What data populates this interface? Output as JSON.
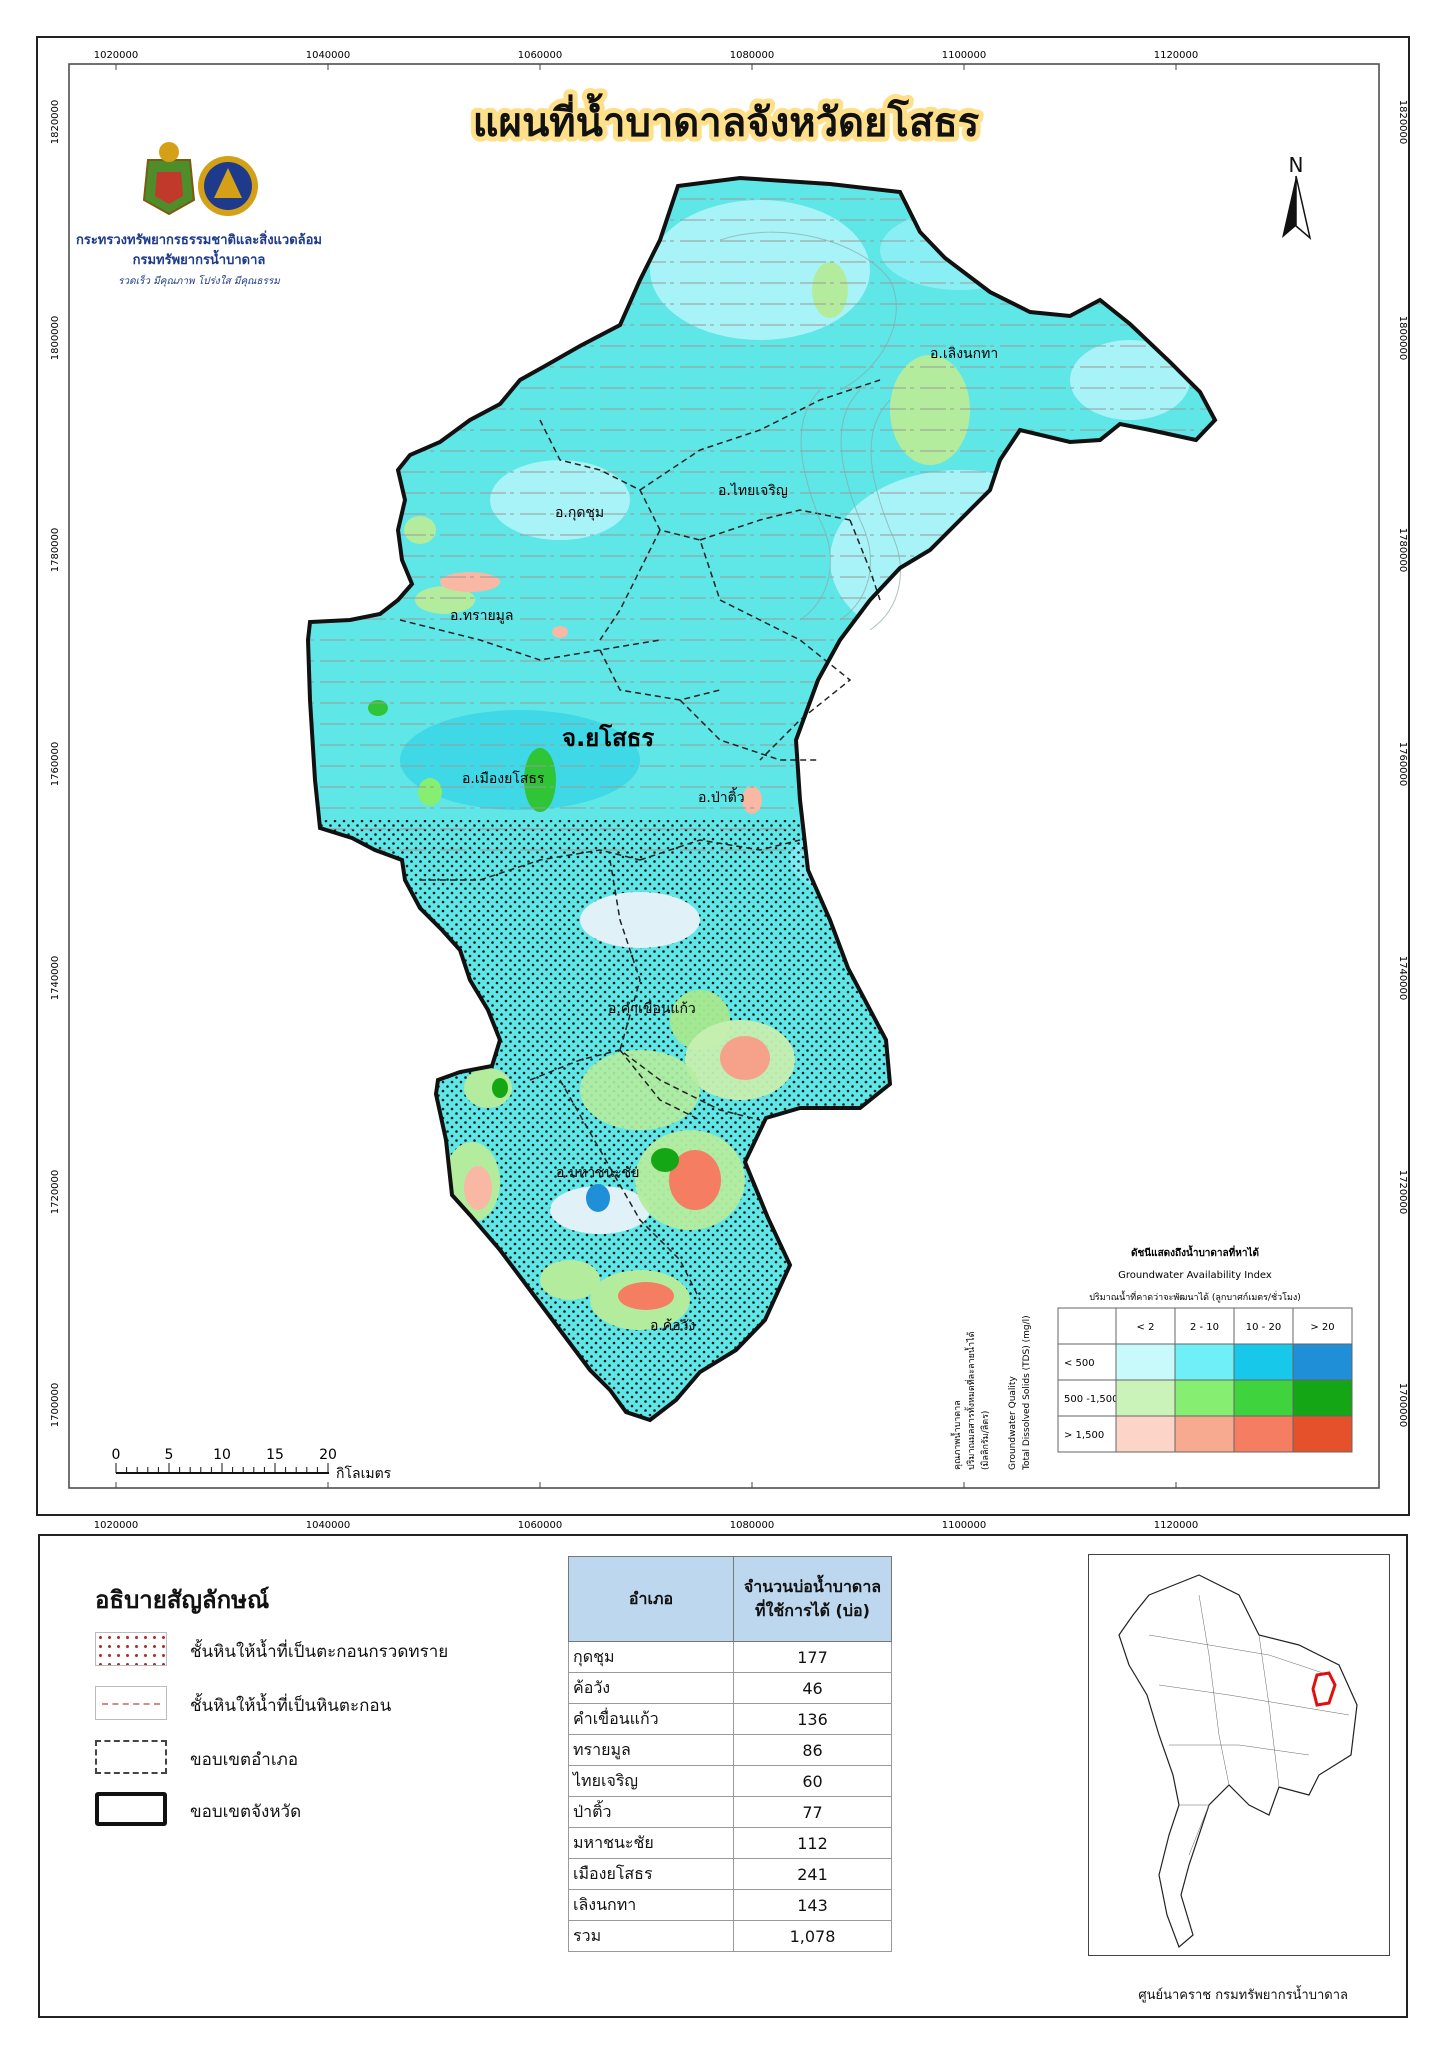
{
  "map": {
    "title": "แผนที่น้ำบาดาลจังหวัดยโสธร",
    "north_label": "N",
    "colors": {
      "title_glow": "#ffe08a",
      "aquifer_base": "#5fe6e6",
      "boundary": "#111111"
    },
    "ministry": "กระทรวงทรัพยากรธรรมชาติและสิ่งแวดล้อม",
    "department": "กรมทรัพยากรน้ำบาดาล",
    "motto": "รวดเร็ว มีคุณภาพ โปร่งใส มีคุณธรรม",
    "province_label": "จ.ยโสธร",
    "district_labels": [
      "อ.เลิงนกทา",
      "อ.ไทยเจริญ",
      "อ.กุดชุม",
      "อ.ทรายมูล",
      "อ.เมืองยโสธร",
      "อ.ป่าติ้ว",
      "อ.คำเขื่อนแก้ว",
      "อ.มหาชนะชัย",
      "อ.ค้อวัง"
    ],
    "x_ticks": [
      "1020000",
      "1040000",
      "1060000",
      "1080000",
      "1100000",
      "1120000"
    ],
    "y_ticks": [
      "1820000",
      "1800000",
      "1780000",
      "1760000",
      "1740000",
      "1720000",
      "1700000"
    ],
    "scale": {
      "ticks": [
        "0",
        "5",
        "10",
        "15",
        "20"
      ],
      "unit": "กิโลเมตร"
    }
  },
  "matrix": {
    "title_th": "ดัชนีแสดงถึงน้ำบาดาลที่หาได้",
    "title_en": "Groundwater Availability Index",
    "x_title": "ปริมาณน้ำที่คาดว่าจะพัฒนาได้ (ลูกบาศก์เมตร/ชั่วโมง)",
    "y_title_1": "คุณภาพน้ำบาดาล",
    "y_title_2": "ปริมาณมลสารทั้งหมดที่ละลายน้ำได้",
    "y_title_3": "(มิลลิกรัม/ลิตร)",
    "y_title_en1": "Groundwater Quality",
    "y_title_en2": "Total Dissolved Solids (TDS) (mg/l)",
    "cols": [
      "< 2",
      "2 - 10",
      "10 - 20",
      "> 20"
    ],
    "rows": [
      "< 500",
      "500 -1,500",
      "> 1,500"
    ],
    "colors": [
      [
        "#c8f9fb",
        "#6ff0f7",
        "#18c8ea",
        "#1f8fd8"
      ],
      [
        "#c9f3b8",
        "#86ef72",
        "#3fd43d",
        "#14a614"
      ],
      [
        "#fcd5c8",
        "#f8aa90",
        "#f57d62",
        "#e4512a"
      ]
    ]
  },
  "legend": {
    "title": "อธิบายสัญลักษณ์",
    "items": [
      {
        "label": "ชั้นหินให้น้ำที่เป็นตะกอนกรวดทราย"
      },
      {
        "label": "ชั้นหินให้น้ำที่เป็นหินตะกอน"
      },
      {
        "label": "ขอบเขตอำเภอ"
      },
      {
        "label": "ขอบเขตจังหวัด"
      }
    ]
  },
  "wells_table": {
    "header_district": "อำเภอ",
    "header_count_1": "จำนวนบ่อน้ำบาดาล",
    "header_count_2": "ที่ใช้การได้ (บ่อ)",
    "rows": [
      {
        "district": "กุดชุม",
        "count": "177"
      },
      {
        "district": "ค้อวัง",
        "count": "46"
      },
      {
        "district": "คำเขื่อนแก้ว",
        "count": "136"
      },
      {
        "district": "ทรายมูล",
        "count": "86"
      },
      {
        "district": "ไทยเจริญ",
        "count": "60"
      },
      {
        "district": "ป่าติ้ว",
        "count": "77"
      },
      {
        "district": "มหาชนะชัย",
        "count": "112"
      },
      {
        "district": "เมืองยโสธร",
        "count": "241"
      },
      {
        "district": "เลิงนกทา",
        "count": "143"
      },
      {
        "district": "รวม",
        "count": "1,078"
      }
    ]
  },
  "source": "ศูนย์นาคราช กรมทรัพยากรน้ำบาดาล"
}
